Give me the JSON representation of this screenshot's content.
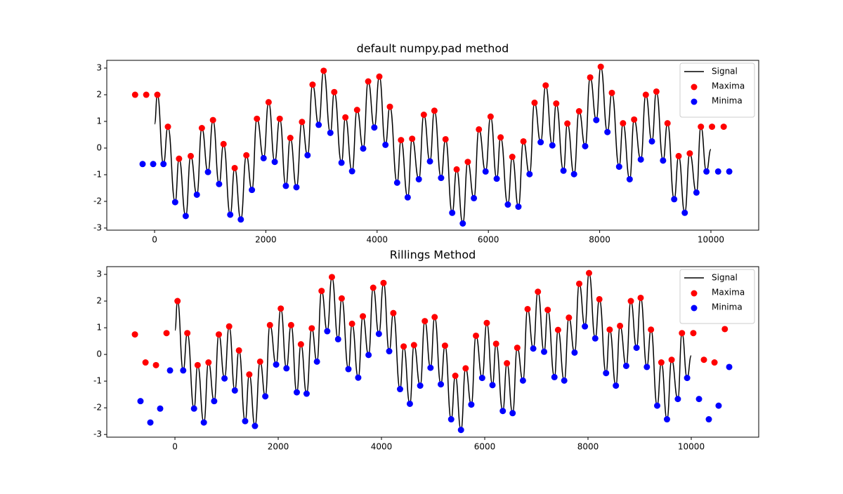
{
  "chart_data": [
    {
      "type": "line",
      "title": "default numpy.pad method",
      "legend": "upper right",
      "xlim": [
        -859,
        10859
      ],
      "ylim": [
        -3.08,
        3.29
      ],
      "xticks": [
        0,
        2000,
        4000,
        6000,
        8000,
        10000
      ],
      "yticks": [
        -3,
        -2,
        -1,
        0,
        1,
        2,
        3
      ],
      "series": [
        {
          "name": "Signal",
          "type": "line",
          "color": "#000000",
          "x": [
            0,
            50,
            160,
            240,
            370,
            440,
            560,
            650,
            760,
            850,
            960,
            1050,
            1160,
            1240,
            1360,
            1440,
            1550,
            1650,
            1750,
            1840,
            1960,
            2050,
            2160,
            2250,
            2360,
            2440,
            2550,
            2650,
            2750,
            2840,
            2950,
            3040,
            3160,
            3230,
            3360,
            3430,
            3550,
            3640,
            3750,
            3840,
            3950,
            4040,
            4150,
            4230,
            4360,
            4430,
            4550,
            4630,
            4750,
            4840,
            4950,
            5030,
            5150,
            5230,
            5350,
            5430,
            5540,
            5630,
            5740,
            5830,
            5950,
            6040,
            6150,
            6220,
            6350,
            6430,
            6540,
            6630,
            6740,
            6830,
            6940,
            7030,
            7150,
            7220,
            7350,
            7420,
            7540,
            7630,
            7740,
            7830,
            7940,
            8020,
            8140,
            8220,
            8350,
            8420,
            8540,
            8620,
            8740,
            8830,
            8940,
            9020,
            9140,
            9220,
            9340,
            9420,
            9530,
            9620,
            9740,
            9820,
            9920,
            10000
          ],
          "values": [
            0.9,
            2.0,
            -0.6,
            0.8,
            -2.03,
            -0.4,
            -2.55,
            -0.3,
            -1.75,
            0.75,
            -0.9,
            1.05,
            -1.35,
            0.15,
            -2.5,
            -0.75,
            -2.68,
            -0.27,
            -1.57,
            1.1,
            -0.38,
            1.72,
            -0.52,
            1.1,
            -1.42,
            0.38,
            -1.47,
            0.98,
            -0.27,
            2.38,
            0.87,
            2.9,
            0.57,
            2.1,
            -0.55,
            1.15,
            -0.87,
            1.43,
            -0.02,
            2.5,
            0.77,
            2.68,
            0.12,
            1.55,
            -1.3,
            0.3,
            -1.85,
            0.35,
            -1.17,
            1.25,
            -0.5,
            1.4,
            -1.12,
            0.33,
            -2.43,
            -0.8,
            -2.83,
            -0.52,
            -1.88,
            0.7,
            -0.88,
            1.18,
            -1.15,
            0.4,
            -2.12,
            -0.33,
            -2.2,
            0.25,
            -0.98,
            1.7,
            0.22,
            2.35,
            0.1,
            1.67,
            -0.85,
            0.92,
            -0.98,
            1.38,
            0.07,
            2.65,
            1.05,
            3.05,
            0.6,
            2.07,
            -0.7,
            0.93,
            -1.17,
            1.07,
            -0.43,
            2.0,
            0.25,
            2.12,
            -0.47,
            0.93,
            -1.92,
            -0.3,
            -2.43,
            -0.2,
            -1.67,
            0.8,
            -0.88,
            -0.05
          ]
        },
        {
          "name": "Maxima",
          "type": "scatter",
          "color": "#ff0000",
          "x": [
            -350,
            -150,
            50,
            240,
            440,
            650,
            850,
            1050,
            1240,
            1440,
            1650,
            1840,
            2050,
            2250,
            2440,
            2650,
            2840,
            3040,
            3230,
            3430,
            3640,
            3840,
            4040,
            4230,
            4430,
            4630,
            4840,
            5030,
            5230,
            5430,
            5630,
            5830,
            6040,
            6220,
            6430,
            6630,
            6830,
            7030,
            7220,
            7420,
            7630,
            7830,
            8020,
            8220,
            8420,
            8620,
            8830,
            9020,
            9220,
            9420,
            9620,
            9820,
            10020,
            10230
          ],
          "values": [
            2.0,
            2.0,
            2.0,
            0.8,
            -0.4,
            -0.3,
            0.75,
            1.05,
            0.15,
            -0.75,
            -0.27,
            1.1,
            1.72,
            1.1,
            0.38,
            0.98,
            2.38,
            2.9,
            2.1,
            1.15,
            1.43,
            2.5,
            2.68,
            1.55,
            0.3,
            0.35,
            1.25,
            1.4,
            0.33,
            -0.8,
            -0.52,
            0.7,
            1.18,
            0.4,
            -0.33,
            0.25,
            1.7,
            2.35,
            1.67,
            0.92,
            1.38,
            2.65,
            3.05,
            2.07,
            0.93,
            1.07,
            2.0,
            2.12,
            0.93,
            -0.3,
            -0.2,
            0.8,
            0.8,
            0.8
          ]
        },
        {
          "name": "Minima",
          "type": "scatter",
          "color": "#0000ff",
          "x": [
            -215,
            -25,
            160,
            370,
            560,
            760,
            960,
            1160,
            1360,
            1550,
            1750,
            1960,
            2160,
            2360,
            2550,
            2750,
            2950,
            3160,
            3360,
            3550,
            3750,
            3950,
            4150,
            4360,
            4550,
            4750,
            4950,
            5150,
            5350,
            5540,
            5740,
            5950,
            6150,
            6350,
            6540,
            6740,
            6940,
            7150,
            7350,
            7540,
            7740,
            7940,
            8140,
            8350,
            8540,
            8740,
            8940,
            9140,
            9340,
            9530,
            9740,
            9920,
            10130,
            10330
          ],
          "values": [
            -0.6,
            -0.6,
            -0.6,
            -2.03,
            -2.55,
            -1.75,
            -0.9,
            -1.35,
            -2.5,
            -2.68,
            -1.57,
            -0.38,
            -0.52,
            -1.42,
            -1.47,
            -0.27,
            0.87,
            0.57,
            -0.55,
            -0.87,
            -0.02,
            0.77,
            0.12,
            -1.3,
            -1.85,
            -1.17,
            -0.5,
            -1.12,
            -2.43,
            -2.83,
            -1.88,
            -0.88,
            -1.15,
            -2.12,
            -2.2,
            -0.98,
            0.22,
            0.1,
            -0.85,
            -0.98,
            0.07,
            1.05,
            0.6,
            -0.7,
            -1.17,
            -0.43,
            0.25,
            -0.47,
            -1.92,
            -2.43,
            -1.67,
            -0.88,
            -0.88,
            -0.88
          ]
        }
      ]
    },
    {
      "type": "line",
      "title": "Rillings Method",
      "legend": "upper right",
      "xlim": [
        -1320,
        11306
      ],
      "ylim": [
        -3.1,
        3.29
      ],
      "xticks": [
        0,
        2000,
        4000,
        6000,
        8000,
        10000
      ],
      "yticks": [
        -3,
        -2,
        -1,
        0,
        1,
        2,
        3
      ],
      "series": [
        {
          "name": "Signal",
          "type": "line",
          "color": "#000000",
          "x": [
            0,
            50,
            160,
            240,
            370,
            440,
            560,
            650,
            760,
            850,
            960,
            1050,
            1160,
            1240,
            1360,
            1440,
            1550,
            1650,
            1750,
            1840,
            1960,
            2050,
            2160,
            2250,
            2360,
            2440,
            2550,
            2650,
            2750,
            2840,
            2950,
            3040,
            3160,
            3230,
            3360,
            3430,
            3550,
            3640,
            3750,
            3840,
            3950,
            4040,
            4150,
            4230,
            4360,
            4430,
            4550,
            4630,
            4750,
            4840,
            4950,
            5030,
            5150,
            5230,
            5350,
            5430,
            5540,
            5630,
            5740,
            5830,
            5950,
            6040,
            6150,
            6220,
            6350,
            6430,
            6540,
            6630,
            6740,
            6830,
            6940,
            7030,
            7150,
            7220,
            7350,
            7420,
            7540,
            7630,
            7740,
            7830,
            7940,
            8020,
            8140,
            8220,
            8350,
            8420,
            8540,
            8620,
            8740,
            8830,
            8940,
            9020,
            9140,
            9220,
            9340,
            9420,
            9530,
            9620,
            9740,
            9820,
            9920,
            10000
          ],
          "values": [
            0.9,
            2.0,
            -0.6,
            0.8,
            -2.03,
            -0.4,
            -2.55,
            -0.3,
            -1.75,
            0.75,
            -0.9,
            1.05,
            -1.35,
            0.15,
            -2.5,
            -0.75,
            -2.68,
            -0.27,
            -1.57,
            1.1,
            -0.38,
            1.72,
            -0.52,
            1.1,
            -1.42,
            0.38,
            -1.47,
            0.98,
            -0.27,
            2.38,
            0.87,
            2.9,
            0.57,
            2.1,
            -0.55,
            1.15,
            -0.87,
            1.43,
            -0.02,
            2.5,
            0.77,
            2.68,
            0.12,
            1.55,
            -1.3,
            0.3,
            -1.85,
            0.35,
            -1.17,
            1.25,
            -0.5,
            1.4,
            -1.12,
            0.33,
            -2.43,
            -0.8,
            -2.83,
            -0.52,
            -1.88,
            0.7,
            -0.88,
            1.18,
            -1.15,
            0.4,
            -2.12,
            -0.33,
            -2.2,
            0.25,
            -0.98,
            1.7,
            0.22,
            2.35,
            0.1,
            1.67,
            -0.85,
            0.92,
            -0.98,
            1.38,
            0.07,
            2.65,
            1.05,
            3.05,
            0.6,
            2.07,
            -0.7,
            0.93,
            -1.17,
            1.07,
            -0.43,
            2.0,
            0.25,
            2.12,
            -0.47,
            0.93,
            -1.92,
            -0.3,
            -2.43,
            -0.2,
            -1.67,
            0.8,
            -0.88,
            -0.05
          ]
        },
        {
          "name": "Maxima",
          "type": "scatter",
          "color": "#ff0000",
          "x": [
            -775,
            -570,
            -367,
            -163,
            50,
            240,
            440,
            650,
            850,
            1050,
            1240,
            1440,
            1650,
            1840,
            2050,
            2250,
            2440,
            2650,
            2840,
            3040,
            3230,
            3430,
            3640,
            3840,
            4040,
            4230,
            4430,
            4630,
            4840,
            5030,
            5230,
            5430,
            5630,
            5830,
            6040,
            6220,
            6430,
            6630,
            6830,
            7030,
            7220,
            7420,
            7630,
            7830,
            8020,
            8220,
            8420,
            8620,
            8830,
            9020,
            9220,
            9420,
            9620,
            9820,
            10040,
            10245,
            10450,
            10650
          ],
          "values": [
            0.75,
            -0.3,
            -0.4,
            0.8,
            2.0,
            0.8,
            -0.4,
            -0.3,
            0.75,
            1.05,
            0.15,
            -0.75,
            -0.27,
            1.1,
            1.72,
            1.1,
            0.38,
            0.98,
            2.38,
            2.9,
            2.1,
            1.15,
            1.43,
            2.5,
            2.68,
            1.55,
            0.3,
            0.35,
            1.25,
            1.4,
            0.33,
            -0.8,
            -0.52,
            0.7,
            1.18,
            0.4,
            -0.33,
            0.25,
            1.7,
            2.35,
            1.67,
            0.92,
            1.38,
            2.65,
            3.05,
            2.07,
            0.93,
            1.07,
            2.0,
            2.12,
            0.93,
            -0.3,
            -0.2,
            0.8,
            0.8,
            -0.2,
            -0.3,
            0.95
          ]
        },
        {
          "name": "Minima",
          "type": "scatter",
          "color": "#0000ff",
          "x": [
            -667,
            -476,
            -286,
            -95,
            160,
            370,
            560,
            760,
            960,
            1160,
            1360,
            1550,
            1750,
            1960,
            2160,
            2360,
            2550,
            2750,
            2950,
            3160,
            3360,
            3550,
            3750,
            3950,
            4150,
            4360,
            4550,
            4750,
            4950,
            5150,
            5350,
            5540,
            5740,
            5950,
            6150,
            6350,
            6540,
            6740,
            6940,
            7150,
            7350,
            7540,
            7740,
            7940,
            8140,
            8350,
            8540,
            8740,
            8940,
            9140,
            9340,
            9530,
            9740,
            9920,
            10150,
            10340,
            10530,
            10735
          ],
          "values": [
            -1.75,
            -2.55,
            -2.03,
            -0.6,
            -0.6,
            -2.03,
            -2.55,
            -1.75,
            -0.9,
            -1.35,
            -2.5,
            -2.68,
            -1.57,
            -0.38,
            -0.52,
            -1.42,
            -1.47,
            -0.27,
            0.87,
            0.57,
            -0.55,
            -0.87,
            -0.02,
            0.77,
            0.12,
            -1.3,
            -1.85,
            -1.17,
            -0.5,
            -1.12,
            -2.43,
            -2.83,
            -1.88,
            -0.88,
            -1.15,
            -2.12,
            -2.2,
            -0.98,
            0.22,
            0.1,
            -0.85,
            -0.98,
            0.07,
            1.05,
            0.6,
            -0.7,
            -1.17,
            -0.43,
            0.25,
            -0.47,
            -1.92,
            -2.43,
            -1.67,
            -0.88,
            -1.67,
            -2.43,
            -1.92,
            -0.47
          ]
        }
      ]
    }
  ]
}
